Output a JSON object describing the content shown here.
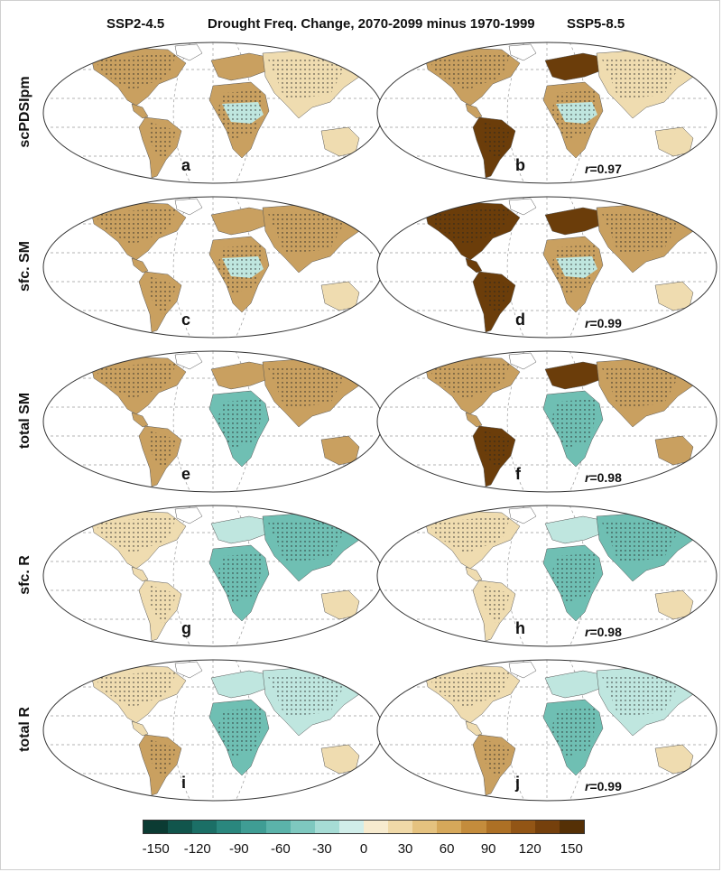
{
  "header": {
    "left": "SSP2-4.5",
    "center": "Drought Freq. Change, 2070-2099 minus 1970-1999",
    "right": "SSP5-8.5"
  },
  "rows": [
    {
      "label": "scPDSIpm",
      "left_panel": "a",
      "right_panel": "b",
      "r_value": "=0.97"
    },
    {
      "label": "sfc. SM",
      "left_panel": "c",
      "right_panel": "d",
      "r_value": "=0.99"
    },
    {
      "label": "total SM",
      "left_panel": "e",
      "right_panel": "f",
      "r_value": "=0.98"
    },
    {
      "label": "sfc. R",
      "left_panel": "g",
      "right_panel": "h",
      "r_value": "=0.98"
    },
    {
      "label": "total R",
      "left_panel": "i",
      "right_panel": "j",
      "r_value": "=0.99"
    }
  ],
  "r_symbol": "r",
  "colorbar": {
    "colors": [
      "#0b3b33",
      "#11554c",
      "#1b6f66",
      "#2a877e",
      "#3f9d94",
      "#5bb3aa",
      "#7ec8bf",
      "#a6dcd5",
      "#d1eeea",
      "#f7ebcf",
      "#f0d9a8",
      "#e5c27f",
      "#d6a85a",
      "#c48c3c",
      "#ad7025",
      "#925515",
      "#75400c",
      "#553006"
    ],
    "ticks": [
      "-150",
      "-120",
      "-90",
      "-60",
      "-30",
      "0",
      "30",
      "60",
      "90",
      "120",
      "150"
    ]
  },
  "colors": {
    "strong_drying": "#6b3d0a",
    "moderate_drying": "#c9a060",
    "mild_drying": "#efdcb0",
    "mild_wetting": "#bfe6df",
    "moderate_wetting": "#6fbfb3",
    "ocean": "#ffffff"
  }
}
